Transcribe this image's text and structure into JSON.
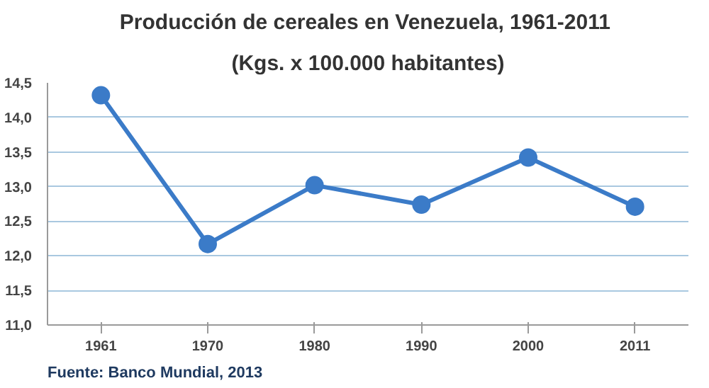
{
  "chart_data": {
    "type": "line",
    "title": "Producción  de cereales en Venezuela, 1961-2011",
    "subtitle": "(Kgs. x 100.000 habitantes)",
    "categories": [
      "1961",
      "1970",
      "1980",
      "1990",
      "2000",
      "2011"
    ],
    "series": [
      {
        "color": "#3b7bc8",
        "values": [
          14.32,
          12.17,
          13.02,
          12.74,
          13.42,
          12.71
        ]
      }
    ],
    "ylim": [
      11.0,
      14.5
    ],
    "yticks": [
      {
        "value": 11.0,
        "label": "11,0"
      },
      {
        "value": 11.5,
        "label": "11,5"
      },
      {
        "value": 12.0,
        "label": "12,0"
      },
      {
        "value": 12.5,
        "label": "12,5"
      },
      {
        "value": 13.0,
        "label": "13,0"
      },
      {
        "value": 13.5,
        "label": "13,5"
      },
      {
        "value": 14.0,
        "label": "14,0"
      },
      {
        "value": 14.5,
        "label": "14,5"
      }
    ],
    "grid": "y",
    "marker": "circle",
    "line_style": "solid",
    "annotations": [
      "Fuente: Banco Mundial, 2013"
    ]
  }
}
